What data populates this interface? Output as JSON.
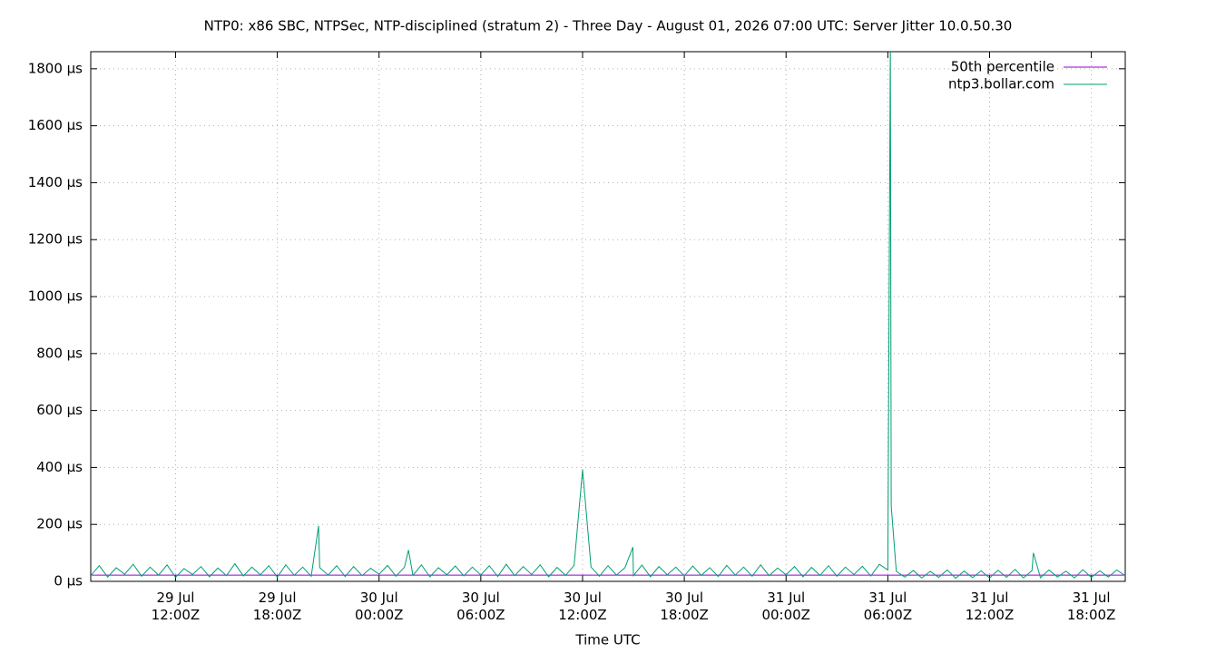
{
  "chart_data": {
    "type": "line",
    "title": "NTP0: x86 SBC, NTPSec, NTP-disciplined (stratum 2) - Three Day - August 01, 2026 07:00 UTC: Server Jitter 10.0.50.30",
    "x_label": "Time UTC",
    "xlim": [
      "29 Jul\n07:00Z",
      "31 Jul\n20:00Z"
    ],
    "xticks": [
      "29 Jul\n12:00Z",
      "29 Jul\n18:00Z",
      "30 Jul\n00:00Z",
      "30 Jul\n06:00Z",
      "30 Jul\n12:00Z",
      "30 Jul\n18:00Z",
      "31 Jul\n00:00Z",
      "31 Jul\n06:00Z",
      "31 Jul\n12:00Z",
      "31 Jul\n18:00Z"
    ],
    "ylim": [
      0,
      1860
    ],
    "yticks": [
      {
        "value": 0,
        "label": "0 µs"
      },
      {
        "value": 200,
        "label": "200 µs"
      },
      {
        "value": 400,
        "label": "400 µs"
      },
      {
        "value": 600,
        "label": "600 µs"
      },
      {
        "value": 800,
        "label": "800 µs"
      },
      {
        "value": 1000,
        "label": "1000 µs"
      },
      {
        "value": 1200,
        "label": "1200 µs"
      },
      {
        "value": 1400,
        "label": "1400 µs"
      },
      {
        "value": 1600,
        "label": "1600 µs"
      },
      {
        "value": 1800,
        "label": "1800 µs"
      }
    ],
    "grid": true,
    "legend": "top-right",
    "series": [
      {
        "name": "50th percentile",
        "color": "#9400d3",
        "x": [
          "29 Jul\n07:00Z",
          "31 Jul\n20:00Z"
        ],
        "values": [
          22,
          22
        ]
      },
      {
        "name": "ntp3.bollar.com",
        "color": "#009e73",
        "x": [
          "29 Jul\n07:00Z",
          "29 Jul\n07:30Z",
          "29 Jul\n08:00Z",
          "29 Jul\n08:30Z",
          "29 Jul\n09:00Z",
          "29 Jul\n09:30Z",
          "29 Jul\n10:00Z",
          "29 Jul\n10:30Z",
          "29 Jul\n11:00Z",
          "29 Jul\n11:30Z",
          "29 Jul\n12:00Z",
          "29 Jul\n12:30Z",
          "29 Jul\n13:00Z",
          "29 Jul\n13:30Z",
          "29 Jul\n14:00Z",
          "29 Jul\n14:30Z",
          "29 Jul\n15:00Z",
          "29 Jul\n15:30Z",
          "29 Jul\n16:00Z",
          "29 Jul\n16:30Z",
          "29 Jul\n17:00Z",
          "29 Jul\n17:30Z",
          "29 Jul\n18:00Z",
          "29 Jul\n18:30Z",
          "29 Jul\n19:00Z",
          "29 Jul\n19:30Z",
          "29 Jul\n20:00Z",
          "29 Jul\n20:26Z",
          "29 Jul\n20:30Z",
          "29 Jul\n21:00Z",
          "29 Jul\n21:30Z",
          "29 Jul\n22:00Z",
          "29 Jul\n22:30Z",
          "29 Jul\n23:00Z",
          "29 Jul\n23:30Z",
          "30 Jul\n00:00Z",
          "30 Jul\n00:30Z",
          "30 Jul\n01:00Z",
          "30 Jul\n01:30Z",
          "30 Jul\n01:44Z",
          "30 Jul\n02:00Z",
          "30 Jul\n02:30Z",
          "30 Jul\n03:00Z",
          "30 Jul\n03:30Z",
          "30 Jul\n04:00Z",
          "30 Jul\n04:30Z",
          "30 Jul\n05:00Z",
          "30 Jul\n05:30Z",
          "30 Jul\n06:00Z",
          "30 Jul\n06:30Z",
          "30 Jul\n07:00Z",
          "30 Jul\n07:30Z",
          "30 Jul\n08:00Z",
          "30 Jul\n08:30Z",
          "30 Jul\n09:00Z",
          "30 Jul\n09:30Z",
          "30 Jul\n10:00Z",
          "30 Jul\n10:30Z",
          "30 Jul\n11:00Z",
          "30 Jul\n11:30Z",
          "30 Jul\n12:00Z",
          "30 Jul\n12:30Z",
          "30 Jul\n13:00Z",
          "30 Jul\n13:30Z",
          "30 Jul\n14:00Z",
          "30 Jul\n14:30Z",
          "30 Jul\n14:58Z",
          "30 Jul\n15:00Z",
          "30 Jul\n15:30Z",
          "30 Jul\n16:00Z",
          "30 Jul\n16:30Z",
          "30 Jul\n17:00Z",
          "30 Jul\n17:30Z",
          "30 Jul\n18:00Z",
          "30 Jul\n18:30Z",
          "30 Jul\n19:00Z",
          "30 Jul\n19:30Z",
          "30 Jul\n20:00Z",
          "30 Jul\n20:30Z",
          "30 Jul\n21:00Z",
          "30 Jul\n21:30Z",
          "30 Jul\n22:00Z",
          "30 Jul\n22:30Z",
          "30 Jul\n23:00Z",
          "30 Jul\n23:30Z",
          "31 Jul\n00:00Z",
          "31 Jul\n00:30Z",
          "31 Jul\n01:00Z",
          "31 Jul\n01:30Z",
          "31 Jul\n02:00Z",
          "31 Jul\n02:30Z",
          "31 Jul\n03:00Z",
          "31 Jul\n03:30Z",
          "31 Jul\n04:00Z",
          "31 Jul\n04:30Z",
          "31 Jul\n05:00Z",
          "31 Jul\n05:30Z",
          "31 Jul\n06:00Z",
          "31 Jul\n06:09Z",
          "31 Jul\n06:12Z",
          "31 Jul\n06:30Z",
          "31 Jul\n07:00Z",
          "31 Jul\n07:30Z",
          "31 Jul\n08:00Z",
          "31 Jul\n08:30Z",
          "31 Jul\n09:00Z",
          "31 Jul\n09:30Z",
          "31 Jul\n10:00Z",
          "31 Jul\n10:30Z",
          "31 Jul\n11:00Z",
          "31 Jul\n11:30Z",
          "31 Jul\n12:00Z",
          "31 Jul\n12:30Z",
          "31 Jul\n13:00Z",
          "31 Jul\n13:30Z",
          "31 Jul\n14:00Z",
          "31 Jul\n14:30Z",
          "31 Jul\n14:35Z",
          "31 Jul\n15:00Z",
          "31 Jul\n15:30Z",
          "31 Jul\n16:00Z",
          "31 Jul\n16:30Z",
          "31 Jul\n17:00Z",
          "31 Jul\n17:30Z",
          "31 Jul\n18:00Z",
          "31 Jul\n18:30Z",
          "31 Jul\n19:00Z",
          "31 Jul\n19:30Z",
          "31 Jul\n20:00Z"
        ],
        "values": [
          20,
          55,
          15,
          48,
          25,
          60,
          18,
          50,
          22,
          58,
          14,
          45,
          24,
          52,
          16,
          47,
          20,
          62,
          19,
          50,
          23,
          55,
          15,
          58,
          21,
          50,
          18,
          195,
          48,
          22,
          55,
          17,
          52,
          20,
          46,
          25,
          56,
          18,
          50,
          110,
          21,
          58,
          16,
          48,
          23,
          54,
          19,
          50,
          22,
          55,
          17,
          60,
          20,
          52,
          24,
          58,
          16,
          49,
          21,
          56,
          392,
          50,
          18,
          55,
          22,
          48,
          120,
          20,
          57,
          16,
          52,
          23,
          50,
          19,
          54,
          21,
          48,
          17,
          56,
          22,
          50,
          18,
          58,
          20,
          47,
          23,
          52,
          16,
          49,
          21,
          55,
          18,
          50,
          24,
          53,
          19,
          60,
          40,
          1900,
          265,
          35,
          15,
          38,
          12,
          35,
          14,
          40,
          11,
          36,
          13,
          37,
          12,
          39,
          14,
          42,
          12,
          38,
          100,
          13,
          40,
          15,
          36,
          12,
          41,
          14,
          37,
          15,
          40,
          20
        ]
      }
    ]
  }
}
